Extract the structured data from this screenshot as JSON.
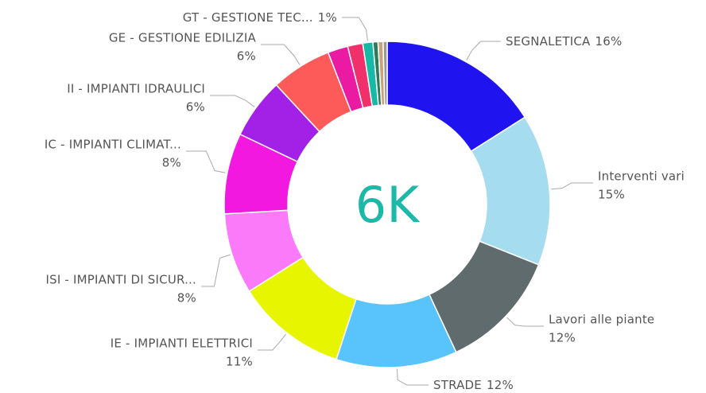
{
  "chart_data": {
    "type": "donut",
    "center_label": "6K",
    "categories": [
      "SEGNALETICA",
      "Interventi vari",
      "Lavori alle piante",
      "STRADE",
      "IE - IMPIANTI ELETTRICI",
      "ISI - IMPIANTI DI SICUR...",
      "IC - IMPIANTI CLIMAT...",
      "II - IMPIANTI IDRAULICI",
      "GE - GESTIONE EDILIZIA",
      null,
      null,
      "GT - GESTIONE TEC...",
      null,
      null,
      null
    ],
    "values": [
      16,
      15,
      12,
      12,
      11,
      8,
      8,
      6,
      6,
      2,
      1.5,
      1,
      0.5,
      0.5,
      0.4
    ],
    "value_labels": [
      "16%",
      "15%",
      "12%",
      "12%",
      "11%",
      "8%",
      "8%",
      "6%",
      "6%",
      null,
      null,
      "1%",
      null,
      null,
      null
    ],
    "colors": [
      "#1f14f0",
      "#a6dcef",
      "#5f6b6d",
      "#59c3fb",
      "#e8f500",
      "#fb7af9",
      "#f218e0",
      "#a321e6",
      "#fd5a5a",
      "#ea1aa2",
      "#f0306a",
      "#17b8a6",
      "#2c7a5a",
      "#c8a27a",
      "#999999"
    ]
  }
}
